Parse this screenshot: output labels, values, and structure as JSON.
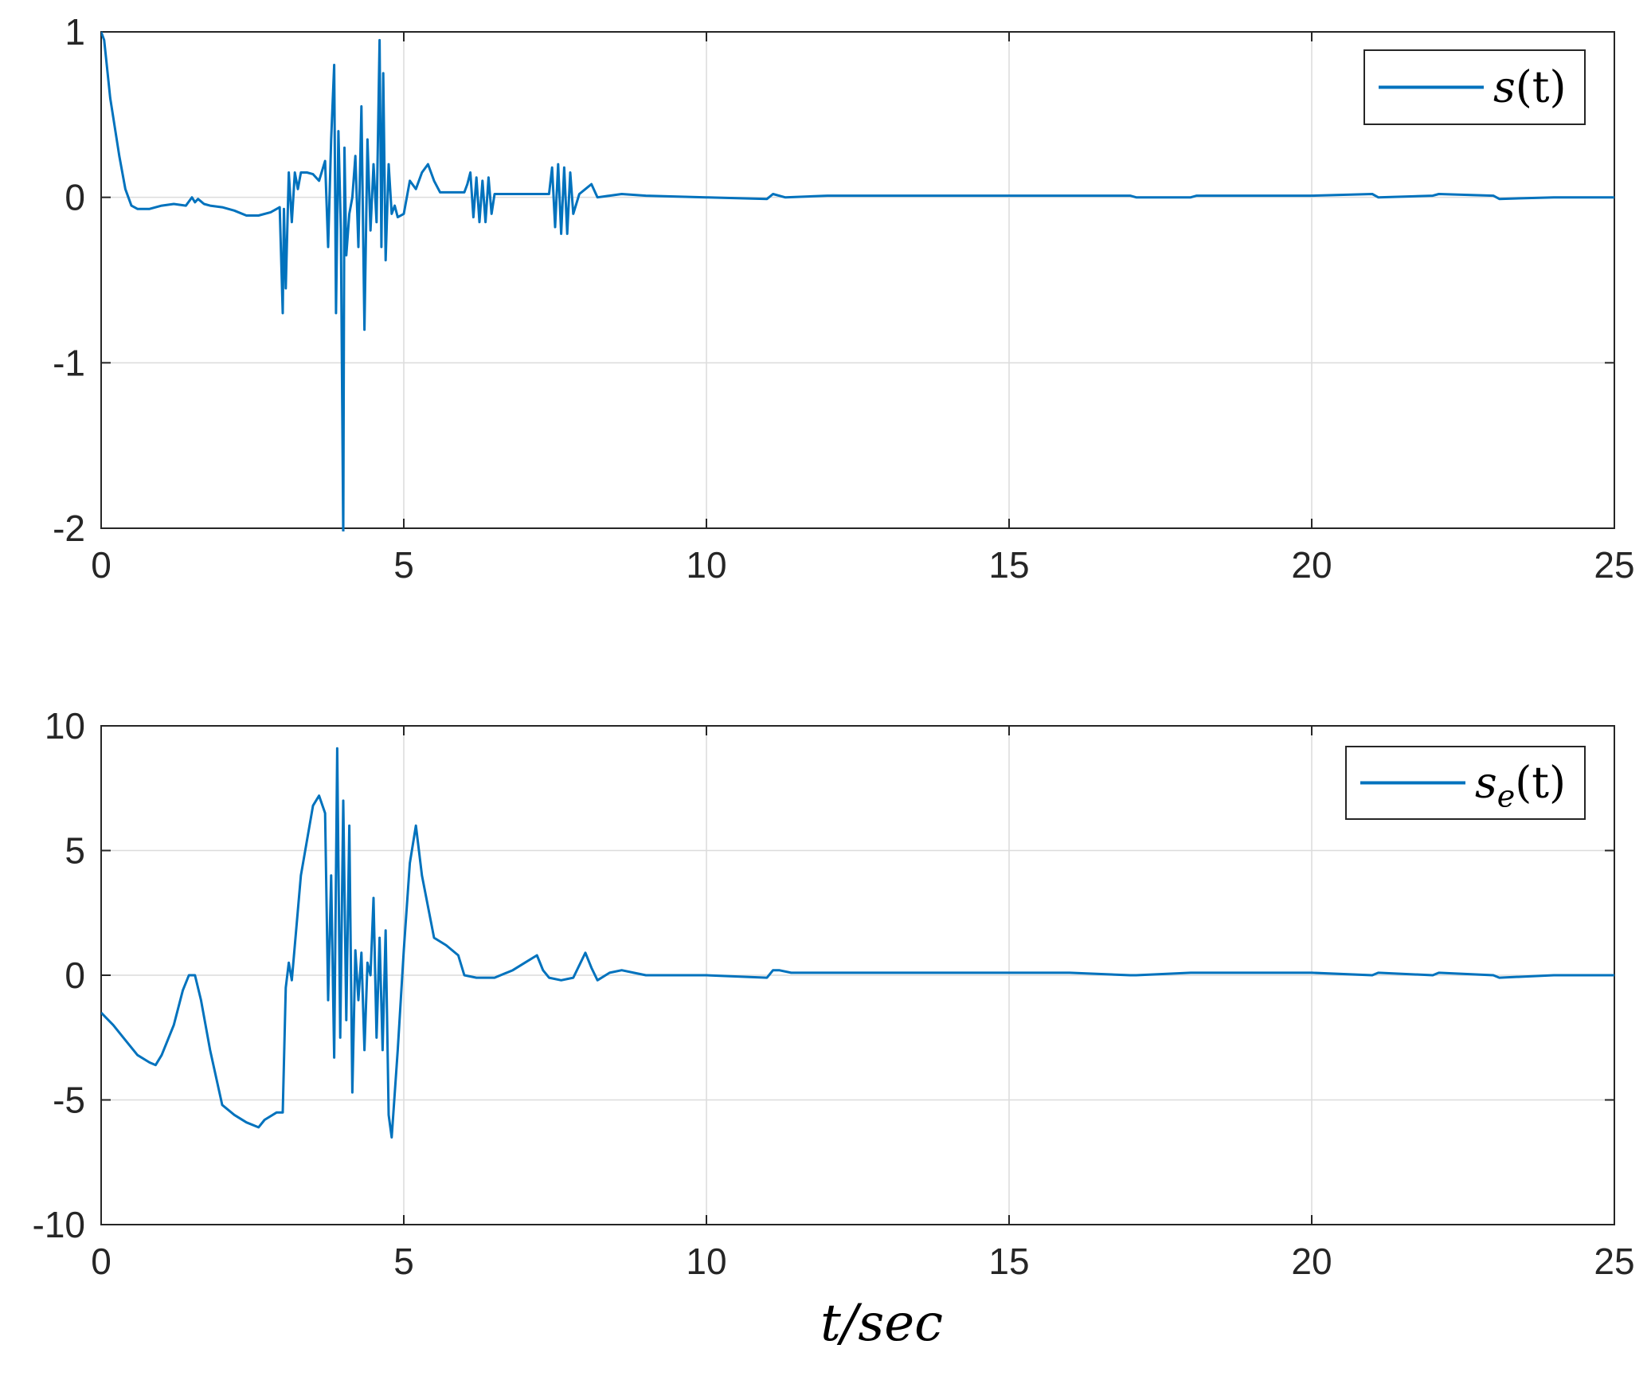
{
  "chart_data": [
    {
      "type": "line",
      "title": "",
      "xlabel": "",
      "ylabel": "",
      "xlim": [
        0,
        25
      ],
      "ylim": [
        -2,
        1
      ],
      "xticks": [
        "0",
        "5",
        "10",
        "15",
        "20",
        "25"
      ],
      "yticks": [
        "1",
        "0",
        "-1",
        "-2"
      ],
      "grid": true,
      "legend_position": "top-right",
      "color": "#0072BD",
      "series": [
        {
          "name": "s(t)",
          "name_base": "s",
          "name_sub": "",
          "name_arg": "(t)",
          "x": [
            0,
            0.05,
            0.15,
            0.3,
            0.4,
            0.5,
            0.6,
            0.8,
            1.0,
            1.2,
            1.4,
            1.5,
            1.55,
            1.6,
            1.7,
            1.8,
            2.0,
            2.2,
            2.4,
            2.6,
            2.8,
            2.95,
            3.0,
            3.02,
            3.05,
            3.1,
            3.15,
            3.2,
            3.25,
            3.3,
            3.4,
            3.5,
            3.6,
            3.7,
            3.75,
            3.8,
            3.85,
            3.88,
            3.92,
            3.96,
            4.0,
            4.02,
            4.05,
            4.1,
            4.15,
            4.2,
            4.25,
            4.3,
            4.35,
            4.4,
            4.45,
            4.5,
            4.55,
            4.6,
            4.63,
            4.66,
            4.7,
            4.75,
            4.8,
            4.85,
            4.9,
            5.0,
            5.1,
            5.2,
            5.3,
            5.4,
            5.5,
            5.6,
            5.8,
            6.0,
            6.05,
            6.1,
            6.15,
            6.2,
            6.25,
            6.3,
            6.35,
            6.4,
            6.45,
            6.5,
            6.7,
            7.0,
            7.2,
            7.4,
            7.45,
            7.5,
            7.55,
            7.6,
            7.65,
            7.7,
            7.75,
            7.8,
            7.9,
            8.0,
            8.1,
            8.2,
            8.4,
            8.6,
            9.0,
            10.0,
            11.0,
            11.1,
            11.3,
            12.0,
            13.0,
            14.0,
            15.0,
            16.0,
            17.0,
            17.1,
            18.0,
            18.1,
            19.0,
            20.0,
            21.0,
            21.1,
            22.0,
            22.1,
            23.0,
            23.1,
            24.0,
            25.0
          ],
          "y": [
            1.0,
            0.95,
            0.6,
            0.25,
            0.05,
            -0.05,
            -0.07,
            -0.07,
            -0.05,
            -0.04,
            -0.05,
            0.0,
            -0.03,
            -0.01,
            -0.04,
            -0.05,
            -0.06,
            -0.08,
            -0.11,
            -0.11,
            -0.09,
            -0.06,
            -0.7,
            -0.07,
            -0.55,
            0.15,
            -0.15,
            0.15,
            0.05,
            0.15,
            0.15,
            0.14,
            0.1,
            0.22,
            -0.3,
            0.35,
            0.8,
            -0.7,
            0.4,
            -0.2,
            -2.05,
            0.3,
            -0.35,
            -0.1,
            0.0,
            0.25,
            -0.3,
            0.55,
            -0.8,
            0.35,
            -0.2,
            0.2,
            -0.15,
            0.95,
            -0.3,
            0.75,
            -0.38,
            0.2,
            -0.1,
            -0.05,
            -0.12,
            -0.1,
            0.1,
            0.05,
            0.15,
            0.2,
            0.1,
            0.03,
            0.03,
            0.03,
            0.08,
            0.15,
            -0.12,
            0.12,
            -0.15,
            0.1,
            -0.15,
            0.12,
            -0.1,
            0.02,
            0.02,
            0.02,
            0.02,
            0.02,
            0.18,
            -0.18,
            0.2,
            -0.22,
            0.18,
            -0.22,
            0.15,
            -0.1,
            0.02,
            0.05,
            0.08,
            0.0,
            0.01,
            0.02,
            0.01,
            0.0,
            -0.01,
            0.02,
            0.0,
            0.01,
            0.01,
            0.01,
            0.01,
            0.01,
            0.01,
            0.0,
            0.0,
            0.01,
            0.01,
            0.01,
            0.02,
            0.0,
            0.01,
            0.02,
            0.01,
            -0.01,
            0.0,
            0.0
          ]
        }
      ]
    },
    {
      "type": "line",
      "title": "",
      "xlabel": "t/sec",
      "ylabel": "",
      "xlim": [
        0,
        25
      ],
      "ylim": [
        -10,
        10
      ],
      "xticks": [
        "0",
        "5",
        "10",
        "15",
        "20",
        "25"
      ],
      "yticks": [
        "10",
        "5",
        "0",
        "-5",
        "-10"
      ],
      "grid": true,
      "legend_position": "top-right",
      "color": "#0072BD",
      "series": [
        {
          "name": "s_e(t)",
          "name_base": "s",
          "name_sub": "e",
          "name_arg": "(t)",
          "x": [
            0,
            0.2,
            0.4,
            0.6,
            0.8,
            0.9,
            1.0,
            1.2,
            1.35,
            1.45,
            1.55,
            1.65,
            1.8,
            2.0,
            2.2,
            2.4,
            2.6,
            2.7,
            2.9,
            3.0,
            3.05,
            3.1,
            3.15,
            3.2,
            3.3,
            3.5,
            3.6,
            3.7,
            3.75,
            3.8,
            3.85,
            3.9,
            3.95,
            4.0,
            4.05,
            4.1,
            4.15,
            4.2,
            4.25,
            4.3,
            4.35,
            4.4,
            4.45,
            4.5,
            4.55,
            4.6,
            4.65,
            4.7,
            4.75,
            4.8,
            4.9,
            5.0,
            5.1,
            5.2,
            5.3,
            5.5,
            5.7,
            5.9,
            6.0,
            6.2,
            6.5,
            6.8,
            7.0,
            7.2,
            7.3,
            7.4,
            7.6,
            7.8,
            8.0,
            8.1,
            8.2,
            8.4,
            8.6,
            8.8,
            9.0,
            10.0,
            11.0,
            11.1,
            11.2,
            11.4,
            12.0,
            13.0,
            14.0,
            15.0,
            16.0,
            17.0,
            17.1,
            18.0,
            18.1,
            19.0,
            20.0,
            21.0,
            21.1,
            22.0,
            22.1,
            23.0,
            23.1,
            24.0,
            25.0
          ],
          "y": [
            -1.5,
            -2.0,
            -2.6,
            -3.2,
            -3.5,
            -3.6,
            -3.2,
            -2.0,
            -0.6,
            0.0,
            0.0,
            -1.0,
            -3.0,
            -5.2,
            -5.6,
            -5.9,
            -6.1,
            -5.8,
            -5.5,
            -5.5,
            -0.5,
            0.5,
            -0.2,
            1.2,
            4.0,
            6.8,
            7.2,
            6.5,
            -1.0,
            4.0,
            -3.3,
            9.1,
            -2.5,
            7.0,
            -1.8,
            6.0,
            -4.7,
            1.0,
            -1.0,
            0.9,
            -3.0,
            0.5,
            0.0,
            3.1,
            -2.5,
            1.5,
            -3.0,
            1.8,
            -5.6,
            -6.5,
            -3.0,
            1.0,
            4.5,
            6.0,
            4.0,
            1.5,
            1.2,
            0.8,
            0.0,
            -0.1,
            -0.1,
            0.2,
            0.5,
            0.8,
            0.2,
            -0.1,
            -0.2,
            -0.1,
            0.9,
            0.3,
            -0.2,
            0.1,
            0.2,
            0.1,
            0.0,
            0.0,
            -0.1,
            0.2,
            0.2,
            0.1,
            0.1,
            0.1,
            0.1,
            0.1,
            0.1,
            0.0,
            0.0,
            0.1,
            0.1,
            0.1,
            0.1,
            0.0,
            0.1,
            0.0,
            0.1,
            0.0,
            -0.1,
            0.0,
            0.0
          ]
        }
      ]
    }
  ]
}
